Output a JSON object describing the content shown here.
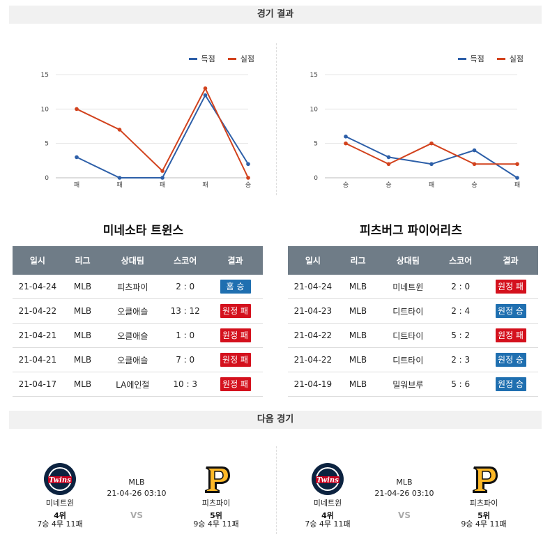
{
  "sections": {
    "results_title": "경기 결과",
    "next_title": "다음 경기"
  },
  "colors": {
    "scored": "#2d5fa8",
    "conceded": "#d2421d",
    "win": "#1f6fb0",
    "loss": "#d4111d"
  },
  "legend": {
    "scored": "득점",
    "conceded": "실점"
  },
  "chart_data": [
    {
      "type": "line",
      "categories": [
        "패",
        "패",
        "패",
        "패",
        "승"
      ],
      "ylim": [
        0,
        15
      ],
      "yticks": [
        0,
        5,
        10,
        15
      ],
      "series": [
        {
          "name": "득점",
          "values": [
            3,
            0,
            0,
            12,
            2
          ]
        },
        {
          "name": "실점",
          "values": [
            10,
            7,
            1,
            13,
            0
          ]
        }
      ],
      "legend_position": "top-right",
      "grid": true
    },
    {
      "type": "line",
      "categories": [
        "승",
        "승",
        "패",
        "승",
        "패"
      ],
      "ylim": [
        0,
        15
      ],
      "yticks": [
        0,
        5,
        10,
        15
      ],
      "series": [
        {
          "name": "득점",
          "values": [
            6,
            3,
            2,
            4,
            0
          ]
        },
        {
          "name": "실점",
          "values": [
            5,
            2,
            5,
            2,
            2
          ]
        }
      ],
      "legend_position": "top-right",
      "grid": true
    }
  ],
  "teams": [
    {
      "name": "미네소타 트윈스",
      "table_headers": [
        "일시",
        "리그",
        "상대팀",
        "스코어",
        "결과"
      ],
      "rows": [
        {
          "date": "21-04-24",
          "league": "MLB",
          "opponent": "피츠파이",
          "score": "2 : 0",
          "result": "홈 승",
          "win": true
        },
        {
          "date": "21-04-22",
          "league": "MLB",
          "opponent": "오클애슬",
          "score": "13 : 12",
          "result": "원정 패",
          "win": false
        },
        {
          "date": "21-04-21",
          "league": "MLB",
          "opponent": "오클애슬",
          "score": "1 : 0",
          "result": "원정 패",
          "win": false
        },
        {
          "date": "21-04-21",
          "league": "MLB",
          "opponent": "오클애슬",
          "score": "7 : 0",
          "result": "원정 패",
          "win": false
        },
        {
          "date": "21-04-17",
          "league": "MLB",
          "opponent": "LA에인절",
          "score": "10 : 3",
          "result": "원정 패",
          "win": false
        }
      ]
    },
    {
      "name": "피츠버그 파이어리츠",
      "table_headers": [
        "일시",
        "리그",
        "상대팀",
        "스코어",
        "결과"
      ],
      "rows": [
        {
          "date": "21-04-24",
          "league": "MLB",
          "opponent": "미네트윈",
          "score": "2 : 0",
          "result": "원정 패",
          "win": false
        },
        {
          "date": "21-04-23",
          "league": "MLB",
          "opponent": "디트타이",
          "score": "2 : 4",
          "result": "원정 승",
          "win": true
        },
        {
          "date": "21-04-22",
          "league": "MLB",
          "opponent": "디트타이",
          "score": "5 : 2",
          "result": "원정 패",
          "win": false
        },
        {
          "date": "21-04-22",
          "league": "MLB",
          "opponent": "디트타이",
          "score": "2 : 3",
          "result": "원정 승",
          "win": true
        },
        {
          "date": "21-04-19",
          "league": "MLB",
          "opponent": "밀워브루",
          "score": "5 : 6",
          "result": "원정 승",
          "win": true
        }
      ]
    }
  ],
  "next_games": [
    {
      "league": "MLB",
      "datetime": "21-04-26 03:10",
      "vs": "VS",
      "home": {
        "name": "미네트윈",
        "rank": "4위",
        "record": "7승 4무 11패",
        "logo": "twins-logo",
        "logo_text": "Twins"
      },
      "away": {
        "name": "피츠파이",
        "rank": "5위",
        "record": "9승 4무 11패",
        "logo": "pirates-logo"
      }
    },
    {
      "league": "MLB",
      "datetime": "21-04-26 03:10",
      "vs": "VS",
      "home": {
        "name": "미네트윈",
        "rank": "4위",
        "record": "7승 4무 11패",
        "logo": "twins-logo",
        "logo_text": "Twins"
      },
      "away": {
        "name": "피츠파이",
        "rank": "5위",
        "record": "9승 4무 11패",
        "logo": "pirates-logo"
      }
    }
  ]
}
